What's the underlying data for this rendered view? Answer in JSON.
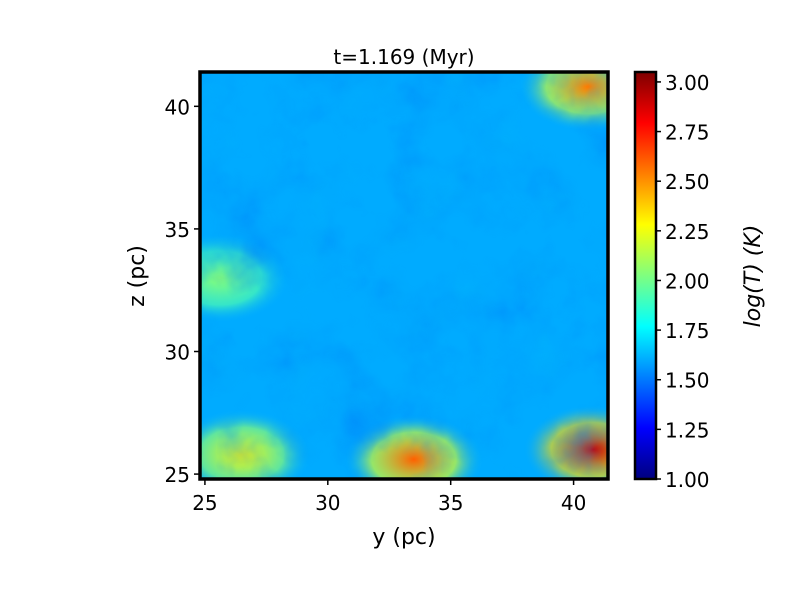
{
  "chart_data": {
    "type": "heatmap",
    "title": "t=1.169 (Myr)",
    "xlabel": "y (pc)",
    "ylabel": "z (pc)",
    "colorbar_label": "log(T) (K)",
    "xlim": [
      24.8,
      41.4
    ],
    "ylim": [
      24.8,
      41.4
    ],
    "x_ticks": [
      25,
      30,
      35,
      40
    ],
    "y_ticks": [
      25,
      30,
      35,
      40
    ],
    "color_range": [
      1.0,
      3.05
    ],
    "colorbar_ticks": [
      "1.00",
      "1.25",
      "1.50",
      "1.75",
      "2.00",
      "2.25",
      "2.50",
      "2.75",
      "3.00"
    ],
    "colorbar_tick_values": [
      1.0,
      1.25,
      1.5,
      1.75,
      2.0,
      2.25,
      2.5,
      2.75,
      3.0
    ],
    "colormap": "jet",
    "colormap_stops": [
      "#00007f",
      "#0000ff",
      "#007fff",
      "#00ffff",
      "#7fff7f",
      "#ffff00",
      "#ff7f00",
      "#ff0000",
      "#7f0000"
    ],
    "hot_regions": [
      {
        "x": 33.5,
        "y": 25.6,
        "logT": 2.6
      },
      {
        "x": 26.5,
        "y": 25.8,
        "logT": 2.3
      },
      {
        "x": 40.6,
        "y": 40.8,
        "logT": 2.55
      },
      {
        "x": 40.8,
        "y": 26.0,
        "logT": 2.9
      },
      {
        "x": 25.6,
        "y": 33.0,
        "logT": 2.05
      }
    ],
    "base_logT": 1.6,
    "grid": false
  }
}
